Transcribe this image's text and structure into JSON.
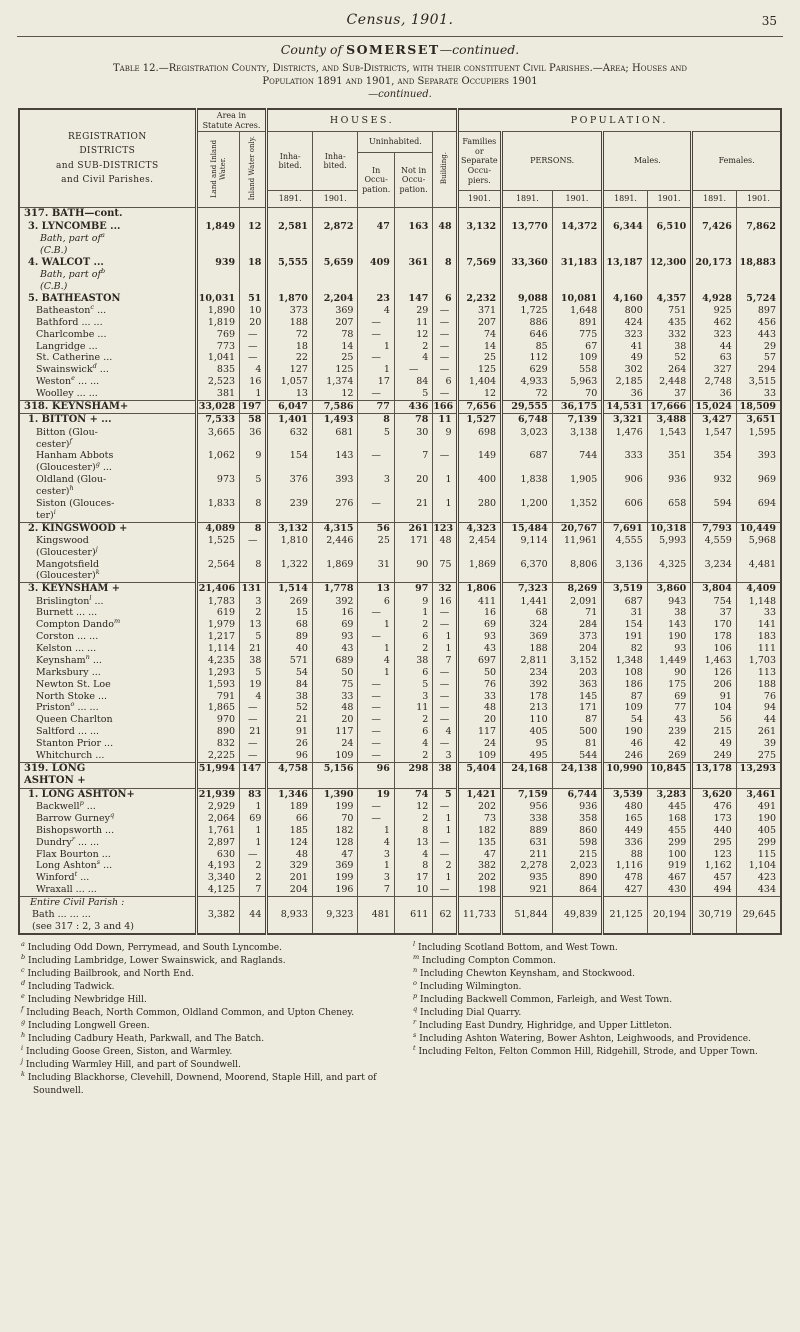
{
  "page": {
    "running_title": "Census, 1901.",
    "page_number": "35",
    "county_prefix": "County of ",
    "county_name": "SOMERSET",
    "county_suffix": "—continued.",
    "caption_line1": "Table 12.—Registration County, Districts, and Sub-Districts, with their constituent Civil Parishes.—Area; Houses and Population 1891 and 1901, and Separate Occupiers 1901",
    "caption_line2": "—continued."
  },
  "table": {
    "header": {
      "districts": "REGISTRATION\nDISTRICTS\nand SUB-DISTRICTS\nand Civil Parishes.",
      "area_group": "Area in\nStatute Acres.",
      "area_land": "Land and Inland Water.",
      "area_water": "Inland Water only.",
      "houses": "HOUSES.",
      "population": "POPULATION.",
      "inhabited_1891": "Inha-\nbited.",
      "inhabited_1901": "Inha-\nbited.",
      "uninhabited": "Uninhabited.",
      "in_occupation": "In\nOccu-\npation.",
      "not_in_occupation": "Not in\nOccu-\npation.",
      "building": "Building.",
      "families": "Families\nor\nSeparate\nOccu-\npiers.",
      "persons": "PERSONS.",
      "males": "Males.",
      "females": "Females.",
      "year_inh_1891": "1891.",
      "year_inh_1901": "1901.",
      "year_families": "1901.",
      "year_persons_1891": "1891.",
      "year_persons_1901": "1901.",
      "year_males_1891": "1891.",
      "year_males_1901": "1901.",
      "year_females_1891": "1891.",
      "year_females_1901": "1901."
    },
    "rows": [
      {
        "s": "district",
        "label": "317. BATH—cont.",
        "v": null
      },
      {
        "s": "sub",
        "label": "3. LYNCOMBE ...",
        "v": [
          "1,849",
          "12",
          "2,581",
          "2,872",
          "47",
          "163",
          "48",
          "3,132",
          "13,770",
          "14,372",
          "6,344",
          "6,510",
          "7,426",
          "7,862"
        ]
      },
      {
        "s": "cb",
        "label": "Bath, part of{a}\n(C.B.)",
        "v": null
      },
      {
        "s": "sub",
        "label": "4. WALCOT ...",
        "v": [
          "939",
          "18",
          "5,555",
          "5,659",
          "409",
          "361",
          "8",
          "7,569",
          "33,360",
          "31,183",
          "13,187",
          "12,300",
          "20,173",
          "18,883"
        ]
      },
      {
        "s": "cb",
        "label": "Bath, part of{b}\n(C.B.)",
        "v": null
      },
      {
        "s": "sub",
        "label": "5. BATHEASTON",
        "v": [
          "10,031",
          "51",
          "1,870",
          "2,204",
          "23",
          "147",
          "6",
          "2,232",
          "9,088",
          "10,081",
          "4,160",
          "4,357",
          "4,928",
          "5,724"
        ]
      },
      {
        "s": "parish",
        "label": "Batheaston{c} ...",
        "v": [
          "1,890",
          "10",
          "373",
          "369",
          "4",
          "29",
          "—",
          "371",
          "1,725",
          "1,648",
          "800",
          "751",
          "925",
          "897"
        ]
      },
      {
        "s": "parish",
        "label": "Bathford ... ...",
        "v": [
          "1,819",
          "20",
          "188",
          "207",
          "—",
          "11",
          "—",
          "207",
          "886",
          "891",
          "424",
          "435",
          "462",
          "456"
        ]
      },
      {
        "s": "parish",
        "label": "Charlcombe ...",
        "v": [
          "769",
          "—",
          "72",
          "78",
          "—",
          "12",
          "—",
          "74",
          "646",
          "775",
          "323",
          "332",
          "323",
          "443"
        ]
      },
      {
        "s": "parish",
        "label": "Langridge ...",
        "v": [
          "773",
          "—",
          "18",
          "14",
          "1",
          "2",
          "—",
          "14",
          "85",
          "67",
          "41",
          "38",
          "44",
          "29"
        ]
      },
      {
        "s": "parish",
        "label": "St. Catherine ...",
        "v": [
          "1,041",
          "—",
          "22",
          "25",
          "—",
          "4",
          "—",
          "25",
          "112",
          "109",
          "49",
          "52",
          "63",
          "57"
        ]
      },
      {
        "s": "parish",
        "label": "Swainswick{d} ...",
        "v": [
          "835",
          "4",
          "127",
          "125",
          "1",
          "—",
          "—",
          "125",
          "629",
          "558",
          "302",
          "264",
          "327",
          "294"
        ]
      },
      {
        "s": "parish",
        "label": "Weston{e} ... ...",
        "v": [
          "2,523",
          "16",
          "1,057",
          "1,374",
          "17",
          "84",
          "6",
          "1,404",
          "4,933",
          "5,963",
          "2,185",
          "2,448",
          "2,748",
          "3,515"
        ]
      },
      {
        "s": "parish",
        "label": "Woolley ... ...",
        "v": [
          "381",
          "1",
          "13",
          "12",
          "—",
          "5",
          "—",
          "12",
          "72",
          "70",
          "36",
          "37",
          "36",
          "33"
        ]
      },
      {
        "s": "district",
        "rule": true,
        "label": "318. KEYNSHAM+",
        "v": [
          "33,028",
          "197",
          "6,047",
          "7,586",
          "77",
          "436",
          "166",
          "7,656",
          "29,555",
          "36,175",
          "14,531",
          "17,666",
          "15,024",
          "18,509"
        ]
      },
      {
        "s": "sub",
        "rule": true,
        "label": "1. BITTON + ...",
        "v": [
          "7,533",
          "58",
          "1,401",
          "1,493",
          "8",
          "78",
          "11",
          "1,527",
          "6,748",
          "7,139",
          "3,321",
          "3,488",
          "3,427",
          "3,651"
        ]
      },
      {
        "s": "parish",
        "label": "Bitton (Glou-\ncester){f}",
        "v": [
          "3,665",
          "36",
          "632",
          "681",
          "5",
          "30",
          "9",
          "698",
          "3,023",
          "3,138",
          "1,476",
          "1,543",
          "1,547",
          "1,595"
        ]
      },
      {
        "s": "parish",
        "label": "Hanham Abbots\n(Gloucester){g} ...",
        "v": [
          "1,062",
          "9",
          "154",
          "143",
          "—",
          "7",
          "—",
          "149",
          "687",
          "744",
          "333",
          "351",
          "354",
          "393"
        ]
      },
      {
        "s": "parish",
        "label": "Oldland (Glou-\ncester){h}",
        "v": [
          "973",
          "5",
          "376",
          "393",
          "3",
          "20",
          "1",
          "400",
          "1,838",
          "1,905",
          "906",
          "936",
          "932",
          "969"
        ]
      },
      {
        "s": "parish",
        "label": "Siston (Glouces-\nter){i}",
        "v": [
          "1,833",
          "8",
          "239",
          "276",
          "—",
          "21",
          "1",
          "280",
          "1,200",
          "1,352",
          "606",
          "658",
          "594",
          "694"
        ]
      },
      {
        "s": "sub",
        "rule": true,
        "label": "2. KINGSWOOD +",
        "v": [
          "4,089",
          "8",
          "3,132",
          "4,315",
          "56",
          "261",
          "123",
          "4,323",
          "15,484",
          "20,767",
          "7,691",
          "10,318",
          "7,793",
          "10,449"
        ]
      },
      {
        "s": "parish",
        "label": "Kingswood\n(Gloucester){j}",
        "v": [
          "1,525",
          "—",
          "1,810",
          "2,446",
          "25",
          "171",
          "48",
          "2,454",
          "9,114",
          "11,961",
          "4,555",
          "5,993",
          "4,559",
          "5,968"
        ]
      },
      {
        "s": "parish",
        "label": "Mangotsfield\n(Gloucester){k}",
        "v": [
          "2,564",
          "8",
          "1,322",
          "1,869",
          "31",
          "90",
          "75",
          "1,869",
          "6,370",
          "8,806",
          "3,136",
          "4,325",
          "3,234",
          "4,481"
        ]
      },
      {
        "s": "s ub",
        "rule": true,
        "label": "3. KEYNSHAM +",
        "v": [
          "21,406",
          "131",
          "1,514",
          "1,778",
          "13",
          "97",
          "32",
          "1,806",
          "7,323",
          "8,269",
          "3,519",
          "3,860",
          "3,804",
          "4,409"
        ]
      },
      {
        "s": "parish",
        "label": "Brislington{l} ...",
        "v": [
          "1,783",
          "3",
          "269",
          "392",
          "6",
          "9",
          "16",
          "411",
          "1,441",
          "2,091",
          "687",
          "943",
          "754",
          "1,148"
        ]
      },
      {
        "s": "parish",
        "label": "Burnett ... ...",
        "v": [
          "619",
          "2",
          "15",
          "16",
          "—",
          "1",
          "—",
          "16",
          "68",
          "71",
          "31",
          "38",
          "37",
          "33"
        ]
      },
      {
        "s": "parish",
        "label": "Compton Dando{m}",
        "v": [
          "1,979",
          "13",
          "68",
          "69",
          "1",
          "2",
          "—",
          "69",
          "324",
          "284",
          "154",
          "143",
          "170",
          "141"
        ]
      },
      {
        "s": "parish",
        "label": "Corston ... ...",
        "v": [
          "1,217",
          "5",
          "89",
          "93",
          "—",
          "6",
          "1",
          "93",
          "369",
          "373",
          "191",
          "190",
          "178",
          "183"
        ]
      },
      {
        "s": "parish",
        "label": "Kelston ... ...",
        "v": [
          "1,114",
          "21",
          "40",
          "43",
          "1",
          "2",
          "1",
          "43",
          "188",
          "204",
          "82",
          "93",
          "106",
          "111"
        ]
      },
      {
        "s": "parish",
        "label": "Keynsham{n} ...",
        "v": [
          "4,235",
          "38",
          "571",
          "689",
          "4",
          "38",
          "7",
          "697",
          "2,811",
          "3,152",
          "1,348",
          "1,449",
          "1,463",
          "1,703"
        ]
      },
      {
        "s": "parish",
        "label": "Marksbury ...",
        "v": [
          "1,293",
          "5",
          "54",
          "50",
          "1",
          "6",
          "—",
          "50",
          "234",
          "203",
          "108",
          "90",
          "126",
          "113"
        ]
      },
      {
        "s": "parish",
        "label": "Newton St. Loe",
        "v": [
          "1,593",
          "19",
          "84",
          "75",
          "—",
          "5",
          "—",
          "76",
          "392",
          "363",
          "186",
          "175",
          "206",
          "188"
        ]
      },
      {
        "s": "parish",
        "label": "North Stoke ...",
        "v": [
          "791",
          "4",
          "38",
          "33",
          "—",
          "3",
          "—",
          "33",
          "178",
          "145",
          "87",
          "69",
          "91",
          "76"
        ]
      },
      {
        "s": "parish",
        "label": "Priston{o} ... ...",
        "v": [
          "1,865",
          "—",
          "52",
          "48",
          "—",
          "11",
          "—",
          "48",
          "213",
          "171",
          "109",
          "77",
          "104",
          "94"
        ]
      },
      {
        "s": "parish",
        "label": "Queen Charlton",
        "v": [
          "970",
          "—",
          "21",
          "20",
          "—",
          "2",
          "—",
          "20",
          "110",
          "87",
          "54",
          "43",
          "56",
          "44"
        ]
      },
      {
        "s": "parish",
        "label": "Saltford ... ...",
        "v": [
          "890",
          "21",
          "91",
          "117",
          "—",
          "6",
          "4",
          "117",
          "405",
          "500",
          "190",
          "239",
          "215",
          "261"
        ]
      },
      {
        "s": "parish",
        "label": "Stanton Prior ...",
        "v": [
          "832",
          "—",
          "26",
          "24",
          "—",
          "4",
          "—",
          "24",
          "95",
          "81",
          "46",
          "42",
          "49",
          "39"
        ]
      },
      {
        "s": "parish",
        "label": "Whitchurch ...",
        "v": [
          "2,225",
          "—",
          "96",
          "109",
          "—",
          "2",
          "3",
          "109",
          "495",
          "544",
          "246",
          "269",
          "249",
          "275"
        ]
      },
      {
        "s": "district",
        "rule": true,
        "label": "319. LONG\nASHTON +",
        "v": [
          "51,994",
          "147",
          "4,758",
          "5,156",
          "96",
          "298",
          "38",
          "5,404",
          "24,168",
          "24,138",
          "10,990",
          "10,845",
          "13,178",
          "13,293"
        ]
      },
      {
        "s": "sub",
        "rule": true,
        "label": "1. LONG ASHTON+",
        "v": [
          "21,939",
          "83",
          "1,346",
          "1,390",
          "19",
          "74",
          "5",
          "1,421",
          "7,159",
          "6,744",
          "3,539",
          "3,283",
          "3,620",
          "3,461"
        ]
      },
      {
        "s": "parish",
        "label": "Backwell{p} ...",
        "v": [
          "2,929",
          "1",
          "189",
          "199",
          "—",
          "12",
          "—",
          "202",
          "956",
          "936",
          "480",
          "445",
          "476",
          "491"
        ]
      },
      {
        "s": "parish",
        "label": "Barrow Gurney{q}",
        "v": [
          "2,064",
          "69",
          "66",
          "70",
          "—",
          "2",
          "1",
          "73",
          "338",
          "358",
          "165",
          "168",
          "173",
          "190"
        ]
      },
      {
        "s": "parish",
        "label": "Bishopsworth ...",
        "v": [
          "1,761",
          "1",
          "185",
          "182",
          "1",
          "8",
          "1",
          "182",
          "889",
          "860",
          "449",
          "455",
          "440",
          "405"
        ]
      },
      {
        "s": "parish",
        "label": "Dundry{r} ... ...",
        "v": [
          "2,897",
          "1",
          "124",
          "128",
          "4",
          "13",
          "—",
          "135",
          "631",
          "598",
          "336",
          "299",
          "295",
          "299"
        ]
      },
      {
        "s": "parish",
        "label": "Flax Bourton ...",
        "v": [
          "630",
          "—",
          "48",
          "47",
          "3",
          "4",
          "—",
          "47",
          "211",
          "215",
          "88",
          "100",
          "123",
          "115"
        ]
      },
      {
        "s": "parish",
        "label": "Long Ashton{s} ...",
        "v": [
          "4,193",
          "2",
          "329",
          "369",
          "1",
          "8",
          "2",
          "382",
          "2,278",
          "2,023",
          "1,116",
          "919",
          "1,162",
          "1,104"
        ]
      },
      {
        "s": "parish",
        "label": "Winford{t} ...",
        "v": [
          "3,340",
          "2",
          "201",
          "199",
          "3",
          "17",
          "1",
          "202",
          "935",
          "890",
          "478",
          "467",
          "457",
          "423"
        ]
      },
      {
        "s": "parish",
        "label": "Wraxall ... ...",
        "v": [
          "4,125",
          "7",
          "204",
          "196",
          "7",
          "10",
          "—",
          "198",
          "921",
          "864",
          "427",
          "430",
          "494",
          "434"
        ]
      },
      {
        "s": "sectlabel",
        "rule": true,
        "label": "Entire Civil Parish :",
        "v": null
      },
      {
        "s": "entire",
        "label": "Bath ... ... ...\n(see 317 : 2, 3 and 4)",
        "v": [
          "3,382",
          "44",
          "8,933",
          "9,323",
          "481",
          "611",
          "62",
          "11,733",
          "51,844",
          "49,839",
          "21,125",
          "20,194",
          "30,719",
          "29,645"
        ]
      }
    ]
  },
  "footnotes": {
    "left": [
      {
        "letter": "a",
        "text": "Including Odd Down, Perrymead, and South Lyncombe."
      },
      {
        "letter": "b",
        "text": "Including Lambridge, Lower Swainswick, and Raglands."
      },
      {
        "letter": "c",
        "text": "Including Bailbrook, and North End."
      },
      {
        "letter": "d",
        "text": "Including Tadwick."
      },
      {
        "letter": "e",
        "text": "Including Newbridge Hill."
      },
      {
        "letter": "f",
        "text": "Including Beach, North Common, Oldland Common, and Upton Cheney."
      },
      {
        "letter": "g",
        "text": "Including Longwell Green."
      },
      {
        "letter": "h",
        "text": "Including Cadbury Heath, Parkwall, and The Batch."
      },
      {
        "letter": "i",
        "text": "Including Goose Green, Siston, and Warmley."
      },
      {
        "letter": "j",
        "text": "Including Warmley Hill, and part of Soundwell."
      },
      {
        "letter": "k",
        "text": "Including Blackhorse, Clevehill, Downend, Moorend, Staple Hill, and part of Soundwell."
      }
    ],
    "right": [
      {
        "letter": "l",
        "text": "Including Scotland Bottom, and West Town."
      },
      {
        "letter": "m",
        "text": "Including Compton Common."
      },
      {
        "letter": "n",
        "text": "Including Chewton Keynsham, and Stockwood."
      },
      {
        "letter": "o",
        "text": "Including Wilmington."
      },
      {
        "letter": "p",
        "text": "Including Backwell Common, Farleigh, and West Town."
      },
      {
        "letter": "q",
        "text": "Including Dial Quarry."
      },
      {
        "letter": "r",
        "text": "Including East Dundry, Highridge, and Upper Littleton."
      },
      {
        "letter": "s",
        "text": "Including Ashton Watering, Bower Ashton, Leighwoods, and Providence."
      },
      {
        "letter": "t",
        "text": "Including Felton, Felton Common Hill, Ridgehill, Strode, and Upper Town."
      }
    ]
  }
}
